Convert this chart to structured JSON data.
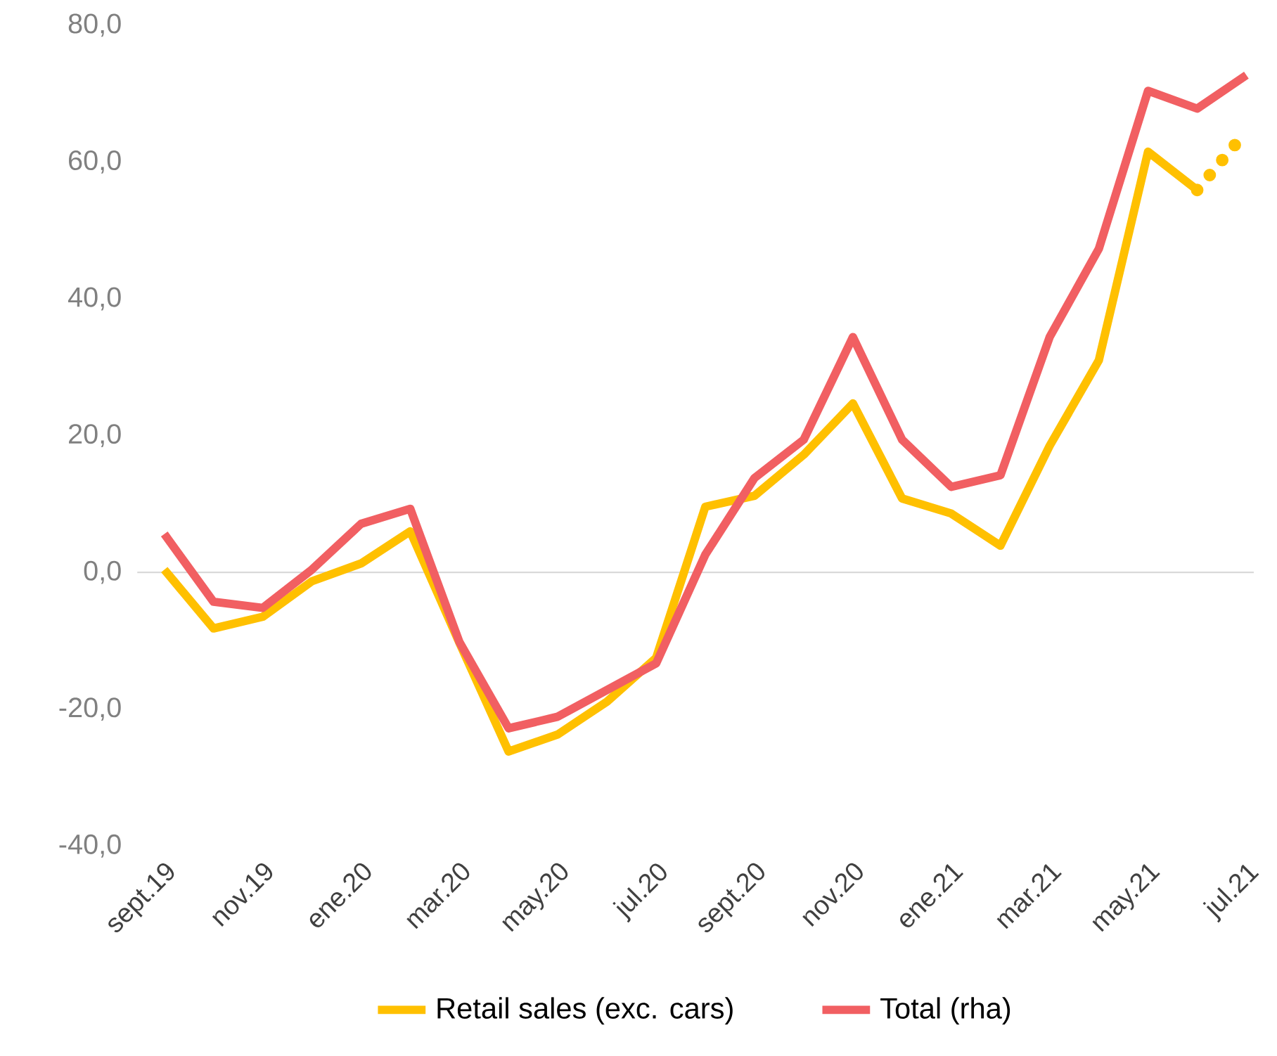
{
  "chart_data": {
    "type": "line",
    "categories": [
      "sept.19",
      null,
      "nov.19",
      null,
      "ene.20",
      null,
      "mar.20",
      null,
      "may.20",
      null,
      "jul.20",
      null,
      "sept.20",
      null,
      "nov.20",
      null,
      "ene.21",
      null,
      "mar.21",
      null,
      "may.21",
      null,
      "jul.21"
    ],
    "series": [
      {
        "name": "Retail sales (exc. cars)",
        "color": "#ffc000",
        "values": [
          0.4,
          -8.2,
          -6.5,
          -1.3,
          1.3,
          6.0,
          -10.3,
          -26.2,
          -23.7,
          -18.9,
          -12.5,
          9.6,
          11.2,
          17.2,
          24.7,
          10.8,
          8.6,
          3.9,
          18.5,
          31.0,
          61.5,
          55.9,
          null
        ]
      },
      {
        "color": "#ffc000",
        "line_style": "dotted",
        "values": [
          null,
          null,
          null,
          null,
          null,
          null,
          null,
          null,
          null,
          null,
          null,
          null,
          null,
          null,
          null,
          null,
          null,
          null,
          null,
          null,
          null,
          55.9,
          64.5
        ]
      },
      {
        "name": "Total (rha)",
        "color": "#f15f62",
        "values": [
          5.6,
          -4.3,
          -5.2,
          0.4,
          7.1,
          9.3,
          -10.2,
          -22.8,
          -21.1,
          -17.2,
          -13.3,
          2.6,
          13.8,
          19.4,
          34.4,
          19.4,
          12.5,
          14.2,
          34.4,
          47.3,
          70.4,
          67.8,
          72.7
        ]
      }
    ],
    "ylim": [
      -40,
      80
    ],
    "yticks": [
      {
        "value": -40,
        "label": "-40,0"
      },
      {
        "value": -20,
        "label": "-20,0"
      },
      {
        "value": 0,
        "label": "0,0"
      },
      {
        "value": 20,
        "label": "20,0"
      },
      {
        "value": 40,
        "label": "40,0"
      },
      {
        "value": 60,
        "label": "60,0"
      },
      {
        "value": 80,
        "label": "80,0"
      }
    ],
    "ref_lines": [
      {
        "axis": "y",
        "value": 0,
        "color": "#d9d9d9"
      }
    ],
    "legend": "bottom",
    "grid": false,
    "line_style": "solid",
    "marker": "none"
  }
}
